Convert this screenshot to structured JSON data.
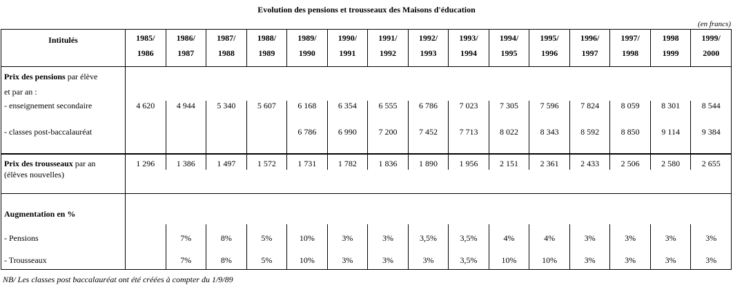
{
  "title": "Evolution des pensions et trousseaux des Maisons d'éducation",
  "unit_note": "(en francs)",
  "header": {
    "label": "Intitulés",
    "years": [
      [
        "1985/",
        "1986"
      ],
      [
        "1986/",
        "1987"
      ],
      [
        "1987/",
        "1988"
      ],
      [
        "1988/",
        "1989"
      ],
      [
        "1989/",
        "1990"
      ],
      [
        "1990/",
        "1991"
      ],
      [
        "1991/",
        "1992"
      ],
      [
        "1992/",
        "1993"
      ],
      [
        "1993/",
        "1994"
      ],
      [
        "1994/",
        "1995"
      ],
      [
        "1995/",
        "1996"
      ],
      [
        "1996/",
        "1997"
      ],
      [
        "1997/",
        "1998"
      ],
      [
        "1998",
        "1999"
      ],
      [
        "1999/",
        "2000"
      ]
    ]
  },
  "pensions": {
    "heading_bold": "Prix des pensions",
    "heading_rest": " par élève",
    "heading_line2": "et par an :",
    "secondaire": {
      "label": "- enseignement secondaire",
      "values": [
        "4 620",
        "4 944",
        "5 340",
        "5 607",
        "6 168",
        "6 354",
        "6 555",
        "6 786",
        "7 023",
        "7 305",
        "7 596",
        "7 824",
        "8 059",
        "8 301",
        "8 544"
      ]
    },
    "post_bac": {
      "label": "- classes post-baccalauréat",
      "values": [
        "",
        "",
        "",
        "",
        "6 786",
        "6 990",
        "7 200",
        "7 452",
        "7 713",
        "8 022",
        "8 343",
        "8 592",
        "8 850",
        "9 114",
        "9 384"
      ]
    }
  },
  "trousseaux": {
    "heading_bold": "Prix des trousseaux",
    "heading_rest": " par an",
    "heading_line2": "(élèves nouvelles)",
    "values": [
      "1 296",
      "1 386",
      "1 497",
      "1 572",
      "1 731",
      "1 782",
      "1 836",
      "1 890",
      "1 956",
      "2 151",
      "2 361",
      "2 433",
      "2 506",
      "2 580",
      "2 655"
    ]
  },
  "augmentation": {
    "heading": "Augmentation en %",
    "pensions": {
      "label": "- Pensions",
      "values": [
        "",
        "7%",
        "8%",
        "5%",
        "10%",
        "3%",
        "3%",
        "3,5%",
        "3,5%",
        "4%",
        "4%",
        "3%",
        "3%",
        "3%",
        "3%"
      ]
    },
    "trousseaux": {
      "label": "- Trousseaux",
      "values": [
        "",
        "7%",
        "8%",
        "5%",
        "10%",
        "3%",
        "3%",
        "3%",
        "3,5%",
        "10%",
        "10%",
        "3%",
        "3%",
        "3%",
        "3%"
      ]
    }
  },
  "footnote": "NB/ Les classes post baccalauréat ont été créées à compter du 1/9/89"
}
